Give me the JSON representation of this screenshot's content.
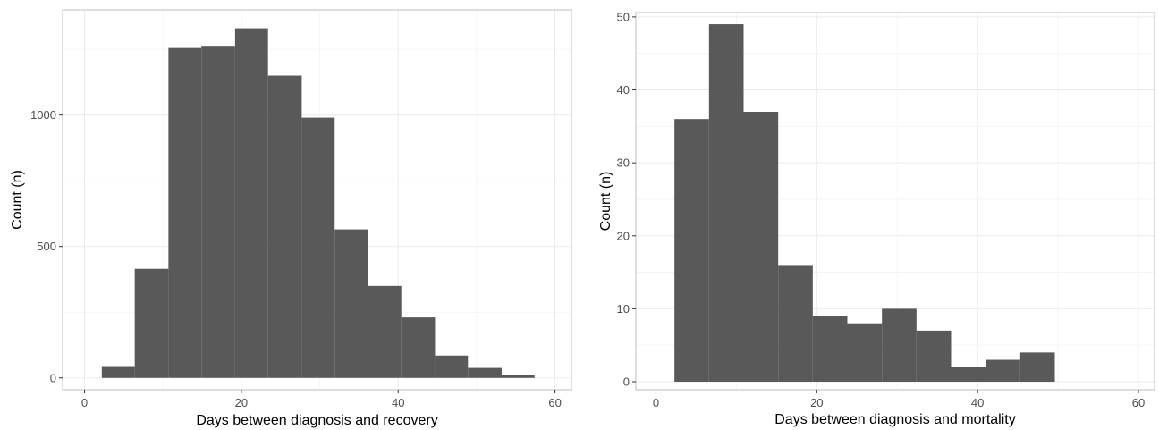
{
  "chart_data": [
    {
      "type": "bar",
      "xlabel": "Days between diagnosis and recovery",
      "ylabel": "Count (n)",
      "xlim": [
        -2.8,
        62.1
      ],
      "ylim": [
        -45,
        1400
      ],
      "xticks": [
        0,
        20,
        40,
        60
      ],
      "yticks": [
        0,
        500,
        1000
      ],
      "bins": [
        {
          "x0": 2.2,
          "x1": 6.4,
          "count": 45
        },
        {
          "x0": 6.4,
          "x1": 10.7,
          "count": 415
        },
        {
          "x0": 10.7,
          "x1": 14.9,
          "count": 1255
        },
        {
          "x0": 14.9,
          "x1": 19.2,
          "count": 1260
        },
        {
          "x0": 19.2,
          "x1": 23.4,
          "count": 1330
        },
        {
          "x0": 23.4,
          "x1": 27.7,
          "count": 1150
        },
        {
          "x0": 27.7,
          "x1": 31.9,
          "count": 990
        },
        {
          "x0": 31.9,
          "x1": 36.2,
          "count": 565
        },
        {
          "x0": 36.2,
          "x1": 40.4,
          "count": 350
        },
        {
          "x0": 40.4,
          "x1": 44.7,
          "count": 230
        },
        {
          "x0": 44.7,
          "x1": 48.9,
          "count": 85
        },
        {
          "x0": 48.9,
          "x1": 53.2,
          "count": 38
        },
        {
          "x0": 53.2,
          "x1": 57.4,
          "count": 10
        }
      ],
      "grid": true,
      "bar_color": "#595959"
    },
    {
      "type": "bar",
      "xlabel": "Days between diagnosis and mortality",
      "ylabel": "Count (n)",
      "xlim": [
        -2.5,
        62.0
      ],
      "ylim": [
        -1.1,
        50.6
      ],
      "xticks": [
        0,
        20,
        40,
        60
      ],
      "yticks": [
        0,
        10,
        20,
        30,
        40,
        50
      ],
      "bins": [
        {
          "x0": 2.3,
          "x1": 6.6,
          "count": 36
        },
        {
          "x0": 6.6,
          "x1": 10.9,
          "count": 49
        },
        {
          "x0": 10.9,
          "x1": 15.2,
          "count": 37
        },
        {
          "x0": 15.2,
          "x1": 19.5,
          "count": 16
        },
        {
          "x0": 19.5,
          "x1": 23.8,
          "count": 9
        },
        {
          "x0": 23.8,
          "x1": 28.1,
          "count": 8
        },
        {
          "x0": 28.1,
          "x1": 32.4,
          "count": 10
        },
        {
          "x0": 32.4,
          "x1": 36.7,
          "count": 7
        },
        {
          "x0": 36.7,
          "x1": 41.0,
          "count": 2
        },
        {
          "x0": 41.0,
          "x1": 45.3,
          "count": 3
        },
        {
          "x0": 45.3,
          "x1": 49.6,
          "count": 4
        }
      ],
      "grid": true,
      "bar_color": "#595959"
    }
  ]
}
